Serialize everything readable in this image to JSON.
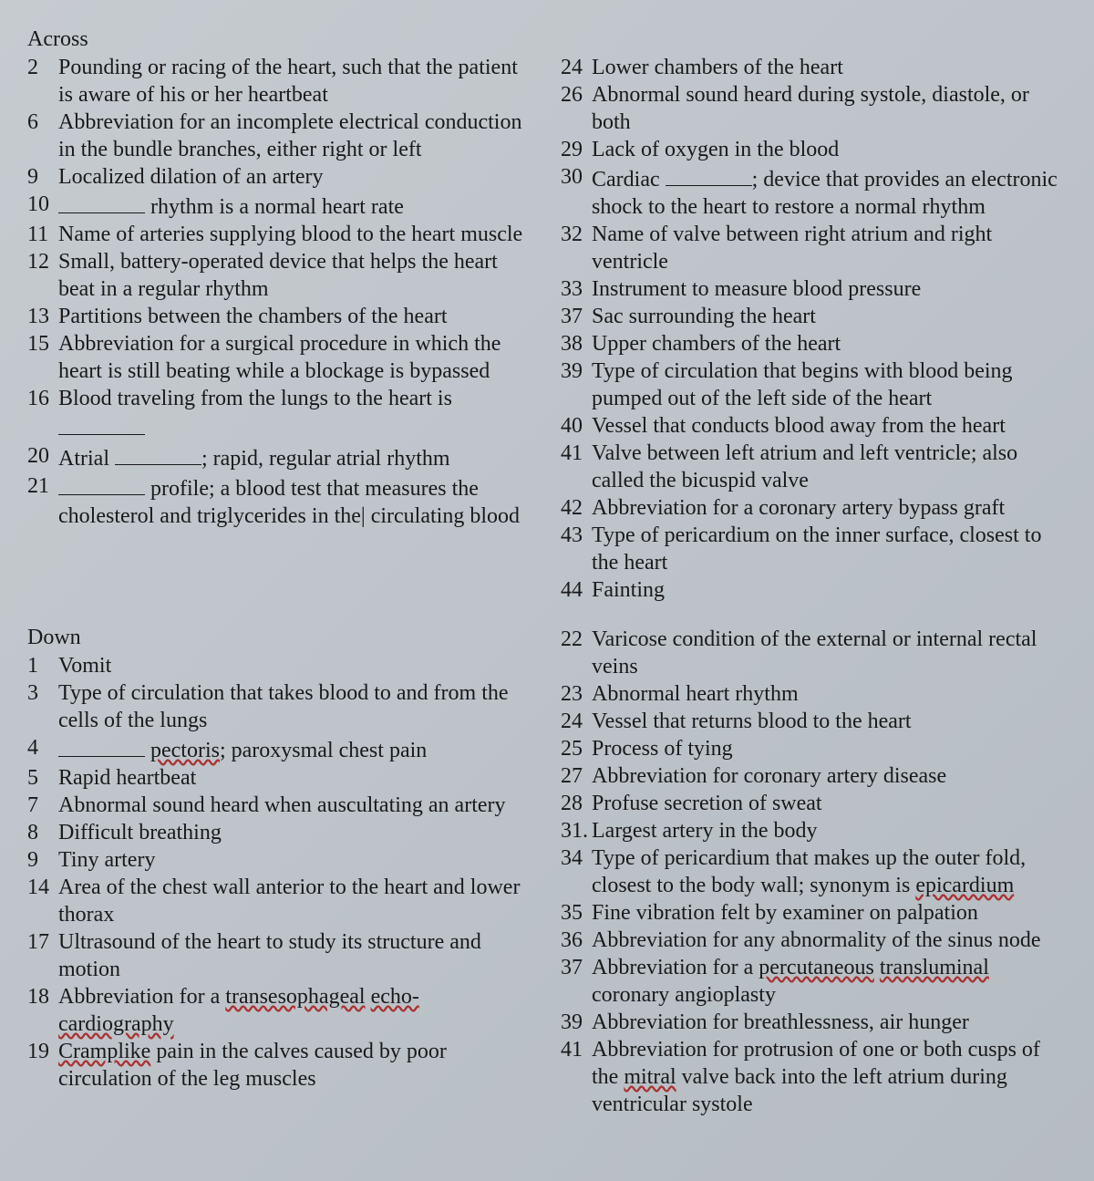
{
  "across": {
    "title": "Across",
    "left": [
      {
        "num": "2",
        "text": "Pounding or racing of the heart, such that the patient is aware of his or her heartbeat"
      },
      {
        "num": "6",
        "text": "Abbreviation for an incomplete electrical conduction in the bundle branches, either right or left"
      },
      {
        "num": "9",
        "text": "Localized dilation of an artery"
      },
      {
        "num": "10",
        "text": "[BLANK] rhythm is a normal heart rate"
      },
      {
        "num": "11",
        "text": "Name of arteries supplying blood to the heart muscle"
      },
      {
        "num": "12",
        "text": "Small, battery-operated device that helps the heart beat in a regular rhythm"
      },
      {
        "num": "13",
        "text": "Partitions between the chambers of the heart"
      },
      {
        "num": "15",
        "text": "Abbreviation for a surgical procedure in which the heart is still beating while a blockage is bypassed"
      },
      {
        "num": "16",
        "text": "Blood traveling from the lungs to the heart is [BLANK]"
      },
      {
        "num": "20",
        "text": "Atrial [BLANK]; rapid, regular atrial rhythm"
      },
      {
        "num": "21",
        "text": "[BLANK] profile; a blood test that measures the cholesterol  and  triglycerides  in  the[CURSOR] circulating blood"
      }
    ],
    "right": [
      {
        "num": "24",
        "text": "Lower chambers of the heart"
      },
      {
        "num": "26",
        "text": "Abnormal sound heard during systole, diastole, or both"
      },
      {
        "num": "29",
        "text": "Lack of oxygen in the blood"
      },
      {
        "num": "30",
        "text": "Cardiac [BLANK]; device that provides an electronic shock to the heart to restore a normal rhythm"
      },
      {
        "num": "32",
        "text": "Name of valve between right atrium and right ventricle"
      },
      {
        "num": "33",
        "text": "Instrument to measure blood pressure"
      },
      {
        "num": "37",
        "text": "Sac surrounding the heart"
      },
      {
        "num": "38",
        "text": "Upper chambers of the heart"
      },
      {
        "num": "39",
        "text": "Type of circulation that begins with blood being pumped out of the left side of the heart"
      },
      {
        "num": "40",
        "text": "Vessel that conducts blood away from the heart"
      },
      {
        "num": "41",
        "text": "Valve between left atrium and left ventricle; also called the bicuspid valve"
      },
      {
        "num": "42",
        "text": "Abbreviation for a coronary artery bypass graft"
      },
      {
        "num": "43",
        "text": "Type of pericardium on the inner surface, closest to the heart"
      },
      {
        "num": "44",
        "text": "Fainting"
      }
    ]
  },
  "down": {
    "title": "Down",
    "left": [
      {
        "num": "1",
        "text": "Vomit"
      },
      {
        "num": "3",
        "text": "Type of circulation that takes blood to and from the cells of the lungs"
      },
      {
        "num": "4",
        "text": "[BLANK] [U]pectoris[/U]; paroxysmal chest pain"
      },
      {
        "num": "5",
        "text": "Rapid heartbeat"
      },
      {
        "num": "7",
        "text": "Abnormal sound heard when auscultating an artery"
      },
      {
        "num": "8",
        "text": "Difficult breathing"
      },
      {
        "num": "9",
        "text": "Tiny artery"
      },
      {
        "num": "14",
        "text": "Area of the chest wall anterior to the heart and lower thorax"
      },
      {
        "num": "17",
        "text": "Ultrasound of the heart to study its structure and motion"
      },
      {
        "num": "18",
        "text": "Abbreviation for a [U]transesophageal[/U] [U]echo-cardiography[/U]"
      },
      {
        "num": "19",
        "text": "[U]Cramplike[/U] pain in the calves caused by poor circulation of the leg muscles"
      }
    ],
    "right": [
      {
        "num": "22",
        "text": "Varicose condition of the external or internal rectal veins"
      },
      {
        "num": "23",
        "text": "Abnormal heart rhythm"
      },
      {
        "num": "24",
        "text": "Vessel that returns blood to the heart"
      },
      {
        "num": "25",
        "text": "Process of tying"
      },
      {
        "num": "27",
        "text": "Abbreviation for coronary artery disease"
      },
      {
        "num": "28",
        "text": "Profuse secretion of sweat"
      },
      {
        "num": "31.",
        "text": " Largest artery in the body"
      },
      {
        "num": "34",
        "text": "Type of pericardium that makes up the outer fold, closest to the body wall; synonym is [U]epicardium[/U]"
      },
      {
        "num": "35",
        "text": "Fine vibration felt by examiner on palpation"
      },
      {
        "num": "36",
        "text": "Abbreviation for any abnormality of the sinus node"
      },
      {
        "num": "37",
        "text": "Abbreviation for a [U]percutaneous[/U] [U]transluminal[/U] coronary angioplasty"
      },
      {
        "num": "39",
        "text": "Abbreviation for breathlessness, air hunger"
      },
      {
        "num": "41",
        "text": "Abbreviation for protrusion of one or both cusps of the [U]mitral[/U] valve back into the left atrium during ventricular systole"
      }
    ]
  }
}
